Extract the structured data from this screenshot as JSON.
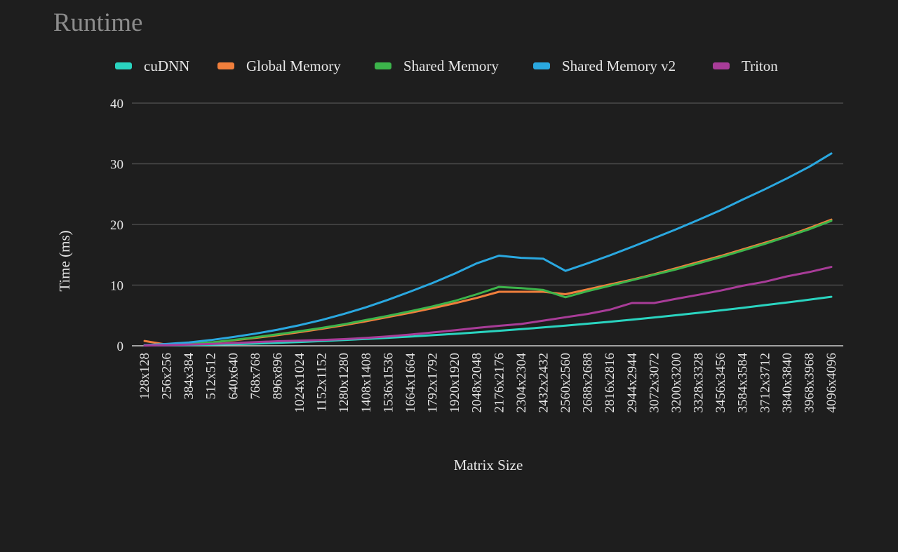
{
  "chart_data": {
    "type": "line",
    "title": "Runtime",
    "xlabel": "Matrix Size",
    "ylabel": "Time (ms)",
    "ylim": [
      0,
      40
    ],
    "yticks": [
      "0",
      "10",
      "20",
      "30",
      "40"
    ],
    "grid": true,
    "legend": "top",
    "categories": [
      "128x128",
      "256x256",
      "384x384",
      "512x512",
      "640x640",
      "768x768",
      "896x896",
      "1024x1024",
      "1152x1152",
      "1280x1280",
      "1408x1408",
      "1536x1536",
      "1664x1664",
      "1792x1792",
      "1920x1920",
      "2048x2048",
      "2176x2176",
      "2304x2304",
      "2432x2432",
      "2560x2560",
      "2688x2688",
      "2816x2816",
      "2944x2944",
      "3072x3072",
      "3200x3200",
      "3328x3328",
      "3456x3456",
      "3584x3584",
      "3712x3712",
      "3840x3840",
      "3968x3968",
      "4096x4096"
    ],
    "series": [
      {
        "name": "cuDNN",
        "color": "#2ad4c0",
        "values": [
          0.05,
          0.08,
          0.12,
          0.18,
          0.26,
          0.36,
          0.48,
          0.62,
          0.78,
          0.95,
          1.13,
          1.32,
          1.52,
          1.74,
          1.97,
          2.21,
          2.47,
          2.74,
          3.03,
          3.33,
          3.64,
          3.97,
          4.31,
          4.67,
          5.04,
          5.43,
          5.84,
          6.26,
          6.7,
          7.14,
          7.6,
          8.08
        ]
      },
      {
        "name": "Global Memory",
        "color": "#f07f3c",
        "values": [
          0.8,
          0.2,
          0.3,
          0.55,
          0.9,
          1.3,
          1.75,
          2.25,
          2.8,
          3.4,
          4.05,
          4.75,
          5.45,
          6.2,
          7.0,
          7.9,
          8.9,
          8.9,
          8.9,
          8.5,
          9.3,
          10.1,
          10.9,
          11.8,
          12.8,
          13.8,
          14.8,
          15.9,
          17.0,
          18.1,
          19.4,
          20.8
        ]
      },
      {
        "name": "Shared Memory",
        "color": "#3cb44b",
        "values": [
          0.1,
          0.2,
          0.3,
          0.55,
          0.95,
          1.4,
          1.9,
          2.4,
          2.95,
          3.55,
          4.25,
          4.95,
          5.7,
          6.5,
          7.4,
          8.5,
          9.7,
          9.5,
          9.2,
          8.0,
          9.0,
          9.9,
          10.8,
          11.7,
          12.6,
          13.6,
          14.6,
          15.7,
          16.8,
          18.0,
          19.2,
          20.6
        ]
      },
      {
        "name": "Shared Memory v2",
        "color": "#2aa8e0",
        "values": [
          0.1,
          0.3,
          0.55,
          0.95,
          1.45,
          2.0,
          2.65,
          3.4,
          4.25,
          5.25,
          6.35,
          7.6,
          8.95,
          10.35,
          11.9,
          13.6,
          14.85,
          14.5,
          14.35,
          12.35,
          13.6,
          14.9,
          16.3,
          17.75,
          19.2,
          20.75,
          22.35,
          24.1,
          25.8,
          27.6,
          29.5,
          31.7
        ]
      },
      {
        "name": "Triton",
        "color": "#a83c98",
        "values": [
          0.05,
          0.1,
          0.2,
          0.3,
          0.45,
          0.6,
          0.75,
          0.85,
          0.95,
          1.1,
          1.3,
          1.55,
          1.85,
          2.2,
          2.55,
          2.95,
          3.3,
          3.6,
          4.15,
          4.7,
          5.25,
          5.95,
          7.05,
          7.05,
          7.75,
          8.4,
          9.1,
          9.9,
          10.55,
          11.45,
          12.15,
          13.0
        ]
      }
    ]
  }
}
